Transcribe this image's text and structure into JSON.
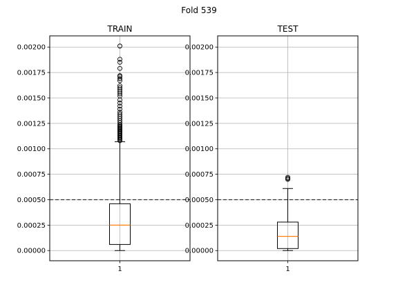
{
  "figure": {
    "title": "Fold 539"
  },
  "chart_data": [
    {
      "type": "box",
      "title": "TRAIN",
      "categories": [
        "1"
      ],
      "ylim": [
        -0.0001,
        0.00211
      ],
      "yticks": [
        0.0,
        0.00025,
        0.0005,
        0.00075,
        0.001,
        0.00125,
        0.0015,
        0.00175,
        0.002
      ],
      "ytick_labels": [
        "0.00000",
        "0.00025",
        "0.00050",
        "0.00075",
        "0.00100",
        "0.00125",
        "0.00150",
        "0.00175",
        "0.00200"
      ],
      "grid": true,
      "reference_line": {
        "y": 0.0005,
        "style": "dashed"
      },
      "box": {
        "whisker_low": 0.0,
        "q1": 6e-05,
        "median": 0.00025,
        "q3": 0.00046,
        "whisker_high": 0.00107
      },
      "outliers": [
        0.00108,
        0.00109,
        0.0011,
        0.00111,
        0.00112,
        0.00113,
        0.00114,
        0.00115,
        0.00116,
        0.00117,
        0.00118,
        0.00119,
        0.0012,
        0.00121,
        0.00122,
        0.00123,
        0.00124,
        0.00126,
        0.00128,
        0.0013,
        0.00132,
        0.00134,
        0.00136,
        0.00139,
        0.00142,
        0.00145,
        0.00148,
        0.00152,
        0.00154,
        0.00156,
        0.00158,
        0.0016,
        0.00162,
        0.00167,
        0.00169,
        0.00171,
        0.00172,
        0.00179,
        0.00185,
        0.00188,
        0.00201
      ]
    },
    {
      "type": "box",
      "title": "TEST",
      "categories": [
        "1"
      ],
      "ylim": [
        -0.0001,
        0.00211
      ],
      "yticks": [
        0.0,
        0.00025,
        0.0005,
        0.00075,
        0.001,
        0.00125,
        0.0015,
        0.00175,
        0.002
      ],
      "ytick_labels": [
        "0.00000",
        "0.00025",
        "0.00050",
        "0.00075",
        "0.00100",
        "0.00125",
        "0.00150",
        "0.00175",
        "0.00200"
      ],
      "grid": true,
      "reference_line": {
        "y": 0.0005,
        "style": "dashed"
      },
      "box": {
        "whisker_low": 0.0,
        "q1": 2e-05,
        "median": 0.00014,
        "q3": 0.00028,
        "whisker_high": 0.00061
      },
      "outliers": [
        0.0007,
        0.00071,
        0.00072
      ]
    }
  ],
  "colors": {
    "median": "#ff7f0e",
    "grid": "#b0b0b0",
    "axes": "#000000"
  }
}
